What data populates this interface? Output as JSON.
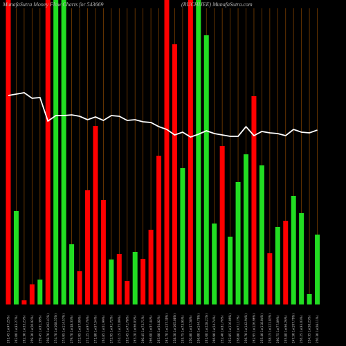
{
  "chart_data": {
    "type": "bar",
    "title": "MunafaSutra Money Flow Charts for 543669",
    "subtitle": "(RUCHIJEE) MunafaSutra.com",
    "categories": [
      "261.45 1x(47.25%)",
      "262.00 1x(83.27%)",
      "262.30 1x(33.23%)",
      "259.30 1x(50.92%)",
      "259.45 1x(91.39%)",
      "258.70 1x(102.41%)",
      "274.70 1x(108.55%)",
      "274.95 1x(114.57%)",
      "279.70 1x(48.33%)",
      "272.95 1x(67.09%)",
      "271.25 1x(97.76%)",
      "271.80 1x(67.54%)",
      "264.85 1x(61.99%)",
      "272.95 1x(41.72%)",
      "274.15 1x(75.09%)",
      "263.45 1x(71.78%)",
      "263.20 1x(66.03%)",
      "260.45 1x(73.71%)",
      "266.00 1x(97.44%)",
      "263.00 1x(64.82%)",
      "261.70 1x(137.30%)",
      "258.50 1x(105.08%)",
      "255.75 1x(73.95%)",
      "250.80 1x(47.58%)",
      "256.00 1x(144.70%)",
      "261.60 1x(228.21%)",
      "266.90 1x(54.74%)",
      "252.40 1x(81.76%)",
      "252.85 1x(116.09%)",
      "258.80 1x(71.17%)",
      "256.70 1x(142.94%)",
      "262.95 1x(126.96%)",
      "255.40 1x(118.04%)",
      "258.15 1x(121.83%)",
      "260.75 1x(77.09%)",
      "255.80 1x(66.26%)",
      "247.50 1x(197.79%)",
      "256.25 1x(93.03%)",
      "254.35 1x(58.23%)",
      "250.30 1x(68.11%)"
    ],
    "values": [
      440,
      135,
      6,
      29,
      36,
      440,
      440,
      440,
      87,
      48,
      165,
      258,
      151,
      65,
      73,
      34,
      76,
      66,
      108,
      215,
      440,
      376,
      197,
      440,
      440,
      389,
      117,
      229,
      98,
      177,
      217,
      301,
      201,
      74,
      112,
      121,
      157,
      132,
      15,
      101
    ],
    "bar_colors": [
      "#ff0000",
      "#22dd22",
      "#ff0000",
      "#ff0000",
      "#22dd22",
      "#ff0000",
      "#22dd22",
      "#22dd22",
      "#22dd22",
      "#ff0000",
      "#ff0000",
      "#ff0000",
      "#ff0000",
      "#22dd22",
      "#ff0000",
      "#ff0000",
      "#22dd22",
      "#ff0000",
      "#ff0000",
      "#ff0000",
      "#ff0000",
      "#ff0000",
      "#22dd22",
      "#ff0000",
      "#22dd22",
      "#22dd22",
      "#22dd22",
      "#ff0000",
      "#22dd22",
      "#22dd22",
      "#22dd22",
      "#ff0000",
      "#22dd22",
      "#ff0000",
      "#22dd22",
      "#ff0000",
      "#22dd22",
      "#22dd22",
      "#22dd22",
      "#22dd22"
    ],
    "line_values": [
      302,
      304,
      306,
      298,
      299,
      265,
      273,
      273,
      274,
      272,
      267,
      271,
      266,
      273,
      272,
      266,
      267,
      264,
      263,
      257,
      253,
      245,
      249,
      242,
      246,
      251,
      247,
      245,
      243,
      243,
      257,
      244,
      250,
      248,
      247,
      244,
      253,
      249,
      248,
      252
    ],
    "line_color": "#ffffff",
    "grid_color": "#7a3e00",
    "ylim": [
      0,
      440
    ]
  }
}
